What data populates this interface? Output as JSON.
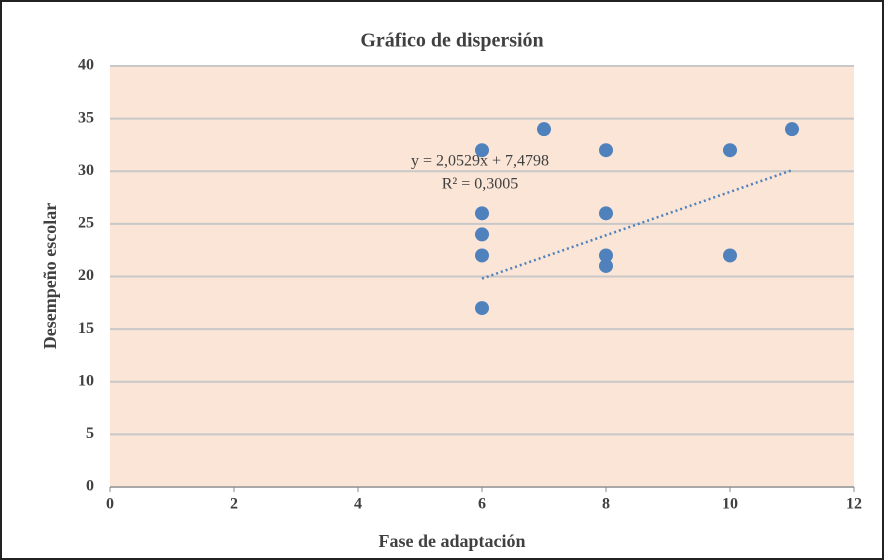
{
  "chart_data": {
    "type": "scatter",
    "title": "Gráfico de dispersión",
    "x_label": "Fase de adaptación",
    "y_label": "Desempeño escolar",
    "series": [
      {
        "color": "#4f81bd",
        "x": [
          6,
          6,
          6,
          6,
          6,
          7,
          8,
          8,
          8,
          8,
          10,
          10,
          11
        ],
        "values": [
          32,
          26,
          24,
          22,
          17,
          34,
          32,
          26,
          22,
          21,
          32,
          22,
          34
        ]
      }
    ],
    "trendline": {
      "color": "#4f81bd",
      "x": [
        6,
        11
      ],
      "values": [
        19.8,
        30.1
      ]
    },
    "annotations": [
      "y = 2,0529x + 7,4798",
      "R² = 0,3005"
    ],
    "xlim": [
      0,
      12
    ],
    "xticks": [
      0,
      2,
      4,
      6,
      8,
      10,
      12
    ],
    "ylim": [
      0,
      40
    ],
    "yticks": [
      0,
      5,
      10,
      15,
      20,
      25,
      30,
      35,
      40
    ],
    "grid": true,
    "plot_background": "#fbe5d6"
  }
}
